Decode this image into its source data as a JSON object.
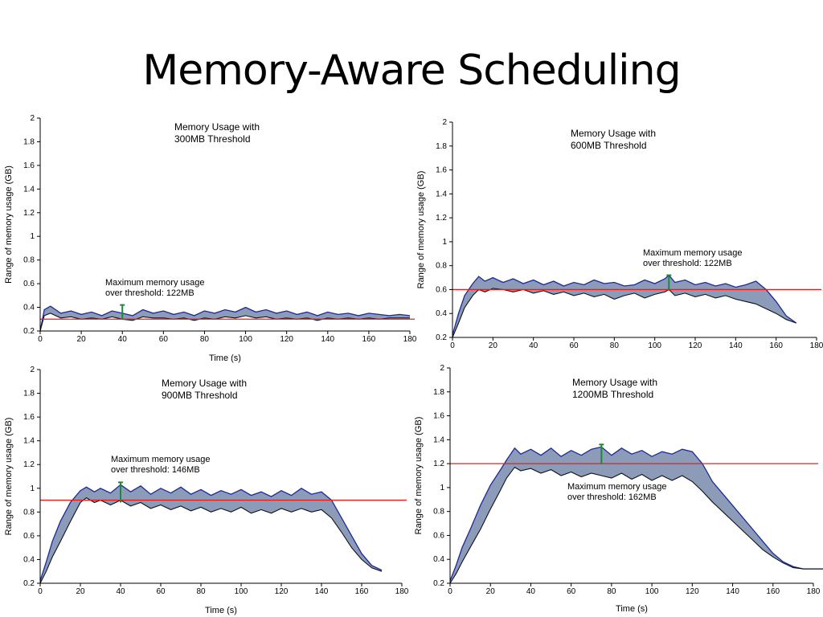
{
  "slide": {
    "title": "Memory-Aware Scheduling"
  },
  "colors": {
    "band_fill": "#8c9cb8",
    "band_upper": "#1a2a9a",
    "band_lower": "#111111",
    "threshold": "#e0201e",
    "max_marker": "#1a8a3a"
  },
  "chart_data": [
    {
      "type": "area",
      "title": [
        "Memory Usage with",
        "300MB Threshold"
      ],
      "xlabel": "Time (s)",
      "ylabel": "Range of memory usage (GB)",
      "xlim": [
        0,
        180
      ],
      "ylim": [
        0.2,
        2
      ],
      "xticks": [
        0,
        20,
        40,
        60,
        80,
        100,
        120,
        140,
        160,
        180
      ],
      "yticks": [
        0.2,
        0.4,
        0.6,
        0.8,
        1,
        1.2,
        1.4,
        1.6,
        1.8,
        2
      ],
      "threshold": 0.3,
      "max_marker": {
        "x": 40,
        "y_low": 0.3,
        "y_high": 0.42
      },
      "annotation": [
        "Maximum memory usage",
        "over threshold: 122MB"
      ],
      "band": {
        "x": [
          0,
          2,
          5,
          10,
          15,
          20,
          25,
          30,
          35,
          40,
          45,
          50,
          55,
          60,
          65,
          70,
          75,
          80,
          85,
          90,
          95,
          100,
          105,
          110,
          115,
          120,
          125,
          130,
          135,
          140,
          145,
          150,
          155,
          160,
          165,
          170,
          175,
          180
        ],
        "upper": [
          0.2,
          0.38,
          0.41,
          0.35,
          0.37,
          0.34,
          0.36,
          0.33,
          0.37,
          0.35,
          0.33,
          0.38,
          0.35,
          0.37,
          0.34,
          0.36,
          0.33,
          0.37,
          0.35,
          0.38,
          0.36,
          0.4,
          0.36,
          0.38,
          0.35,
          0.37,
          0.34,
          0.36,
          0.33,
          0.36,
          0.34,
          0.35,
          0.33,
          0.35,
          0.34,
          0.33,
          0.34,
          0.33
        ],
        "lower": [
          0.2,
          0.33,
          0.35,
          0.31,
          0.32,
          0.3,
          0.31,
          0.3,
          0.32,
          0.3,
          0.29,
          0.32,
          0.31,
          0.31,
          0.3,
          0.31,
          0.29,
          0.31,
          0.3,
          0.32,
          0.31,
          0.33,
          0.31,
          0.32,
          0.3,
          0.31,
          0.3,
          0.31,
          0.29,
          0.31,
          0.3,
          0.31,
          0.3,
          0.31,
          0.3,
          0.31,
          0.31,
          0.31
        ]
      }
    },
    {
      "type": "area",
      "title": [
        "Memory Usage with",
        "600MB Threshold"
      ],
      "xlabel": "",
      "ylabel": "Range of memory usage (GB)",
      "xlim": [
        0,
        180
      ],
      "ylim": [
        0.2,
        2
      ],
      "xticks": [
        0,
        20,
        40,
        60,
        80,
        100,
        120,
        140,
        160,
        180
      ],
      "yticks": [
        0.2,
        0.4,
        0.6,
        0.8,
        1,
        1.2,
        1.4,
        1.6,
        1.8,
        2
      ],
      "threshold": 0.6,
      "max_marker": {
        "x": 107,
        "y_low": 0.6,
        "y_high": 0.72
      },
      "annotation": [
        "Maximum memory usage",
        "over threshold: 122MB"
      ],
      "band": {
        "x": [
          0,
          3,
          6,
          10,
          13,
          16,
          20,
          25,
          30,
          35,
          40,
          45,
          50,
          55,
          60,
          65,
          70,
          75,
          80,
          85,
          90,
          95,
          100,
          105,
          107,
          110,
          115,
          120,
          125,
          130,
          135,
          140,
          145,
          150,
          155,
          160,
          165,
          170
        ],
        "upper": [
          0.22,
          0.4,
          0.55,
          0.65,
          0.71,
          0.67,
          0.7,
          0.66,
          0.69,
          0.65,
          0.68,
          0.64,
          0.67,
          0.63,
          0.66,
          0.64,
          0.68,
          0.65,
          0.66,
          0.63,
          0.64,
          0.68,
          0.65,
          0.69,
          0.72,
          0.66,
          0.68,
          0.64,
          0.66,
          0.63,
          0.65,
          0.62,
          0.64,
          0.67,
          0.6,
          0.5,
          0.38,
          0.32
        ],
        "lower": [
          0.2,
          0.32,
          0.45,
          0.55,
          0.6,
          0.58,
          0.61,
          0.6,
          0.58,
          0.6,
          0.57,
          0.59,
          0.56,
          0.58,
          0.55,
          0.57,
          0.54,
          0.56,
          0.52,
          0.55,
          0.57,
          0.53,
          0.56,
          0.58,
          0.6,
          0.55,
          0.57,
          0.54,
          0.56,
          0.53,
          0.55,
          0.52,
          0.5,
          0.48,
          0.44,
          0.4,
          0.35,
          0.32
        ]
      }
    },
    {
      "type": "area",
      "title": [
        "Memory Usage with",
        "900MB Threshold"
      ],
      "xlabel": "Time (s)",
      "ylabel": "Range of memory usage (GB)",
      "xlim": [
        0,
        180
      ],
      "ylim": [
        0.2,
        2
      ],
      "xticks": [
        0,
        20,
        40,
        60,
        80,
        100,
        120,
        140,
        160,
        180
      ],
      "yticks": [
        0.2,
        0.4,
        0.6,
        0.8,
        1,
        1.2,
        1.4,
        1.6,
        1.8,
        2
      ],
      "threshold": 0.9,
      "max_marker": {
        "x": 40,
        "y_low": 0.88,
        "y_high": 1.05
      },
      "annotation": [
        "Maximum memory usage",
        "over threshold: 146MB"
      ],
      "band": {
        "x": [
          0,
          3,
          6,
          10,
          15,
          20,
          23,
          27,
          30,
          35,
          40,
          45,
          50,
          55,
          60,
          65,
          70,
          75,
          80,
          85,
          90,
          95,
          100,
          105,
          110,
          115,
          120,
          125,
          130,
          135,
          140,
          145,
          150,
          155,
          160,
          165,
          170
        ],
        "upper": [
          0.22,
          0.38,
          0.55,
          0.72,
          0.88,
          0.98,
          1.01,
          0.97,
          1.0,
          0.96,
          1.03,
          0.97,
          1.02,
          0.95,
          1.0,
          0.96,
          1.01,
          0.95,
          0.99,
          0.94,
          0.98,
          0.95,
          0.99,
          0.94,
          0.97,
          0.93,
          0.98,
          0.94,
          1.0,
          0.95,
          0.97,
          0.9,
          0.75,
          0.6,
          0.45,
          0.35,
          0.31
        ],
        "lower": [
          0.2,
          0.3,
          0.42,
          0.55,
          0.72,
          0.88,
          0.92,
          0.88,
          0.9,
          0.86,
          0.9,
          0.85,
          0.88,
          0.83,
          0.86,
          0.82,
          0.85,
          0.81,
          0.84,
          0.8,
          0.83,
          0.8,
          0.84,
          0.79,
          0.82,
          0.79,
          0.83,
          0.8,
          0.83,
          0.8,
          0.82,
          0.75,
          0.63,
          0.5,
          0.4,
          0.33,
          0.3
        ]
      }
    },
    {
      "type": "area",
      "title": [
        "Memory Usage with",
        "1200MB Threshold"
      ],
      "xlabel": "Time (s)",
      "ylabel": "Range of memory usage (GB)",
      "xlim": [
        0,
        180
      ],
      "ylim": [
        0.2,
        2
      ],
      "xticks": [
        0,
        20,
        40,
        60,
        80,
        100,
        120,
        140,
        160,
        180
      ],
      "yticks": [
        0.2,
        0.4,
        0.6,
        0.8,
        1,
        1.2,
        1.4,
        1.6,
        1.8,
        2
      ],
      "threshold": 1.2,
      "max_marker": {
        "x": 75,
        "y_low": 1.2,
        "y_high": 1.36
      },
      "annotation": [
        "Maximum memory usage",
        "over threshold: 162MB"
      ],
      "band": {
        "x": [
          0,
          3,
          6,
          10,
          15,
          20,
          25,
          28,
          32,
          35,
          40,
          45,
          50,
          55,
          60,
          65,
          70,
          75,
          80,
          85,
          90,
          95,
          100,
          105,
          110,
          115,
          120,
          125,
          130,
          135,
          140,
          145,
          150,
          155,
          160,
          165,
          170,
          175,
          180,
          185
        ],
        "upper": [
          0.22,
          0.35,
          0.5,
          0.65,
          0.85,
          1.02,
          1.15,
          1.23,
          1.33,
          1.28,
          1.32,
          1.27,
          1.33,
          1.26,
          1.31,
          1.27,
          1.32,
          1.34,
          1.27,
          1.33,
          1.28,
          1.31,
          1.26,
          1.3,
          1.28,
          1.32,
          1.3,
          1.2,
          1.05,
          0.95,
          0.85,
          0.75,
          0.65,
          0.55,
          0.45,
          0.38,
          0.34,
          0.32,
          0.32,
          0.32
        ],
        "lower": [
          0.2,
          0.28,
          0.38,
          0.5,
          0.65,
          0.82,
          0.98,
          1.08,
          1.17,
          1.14,
          1.16,
          1.12,
          1.15,
          1.1,
          1.13,
          1.09,
          1.12,
          1.1,
          1.08,
          1.12,
          1.07,
          1.11,
          1.06,
          1.1,
          1.06,
          1.1,
          1.05,
          0.97,
          0.88,
          0.8,
          0.72,
          0.64,
          0.56,
          0.48,
          0.42,
          0.37,
          0.33,
          0.32,
          0.32,
          0.32
        ]
      }
    }
  ]
}
